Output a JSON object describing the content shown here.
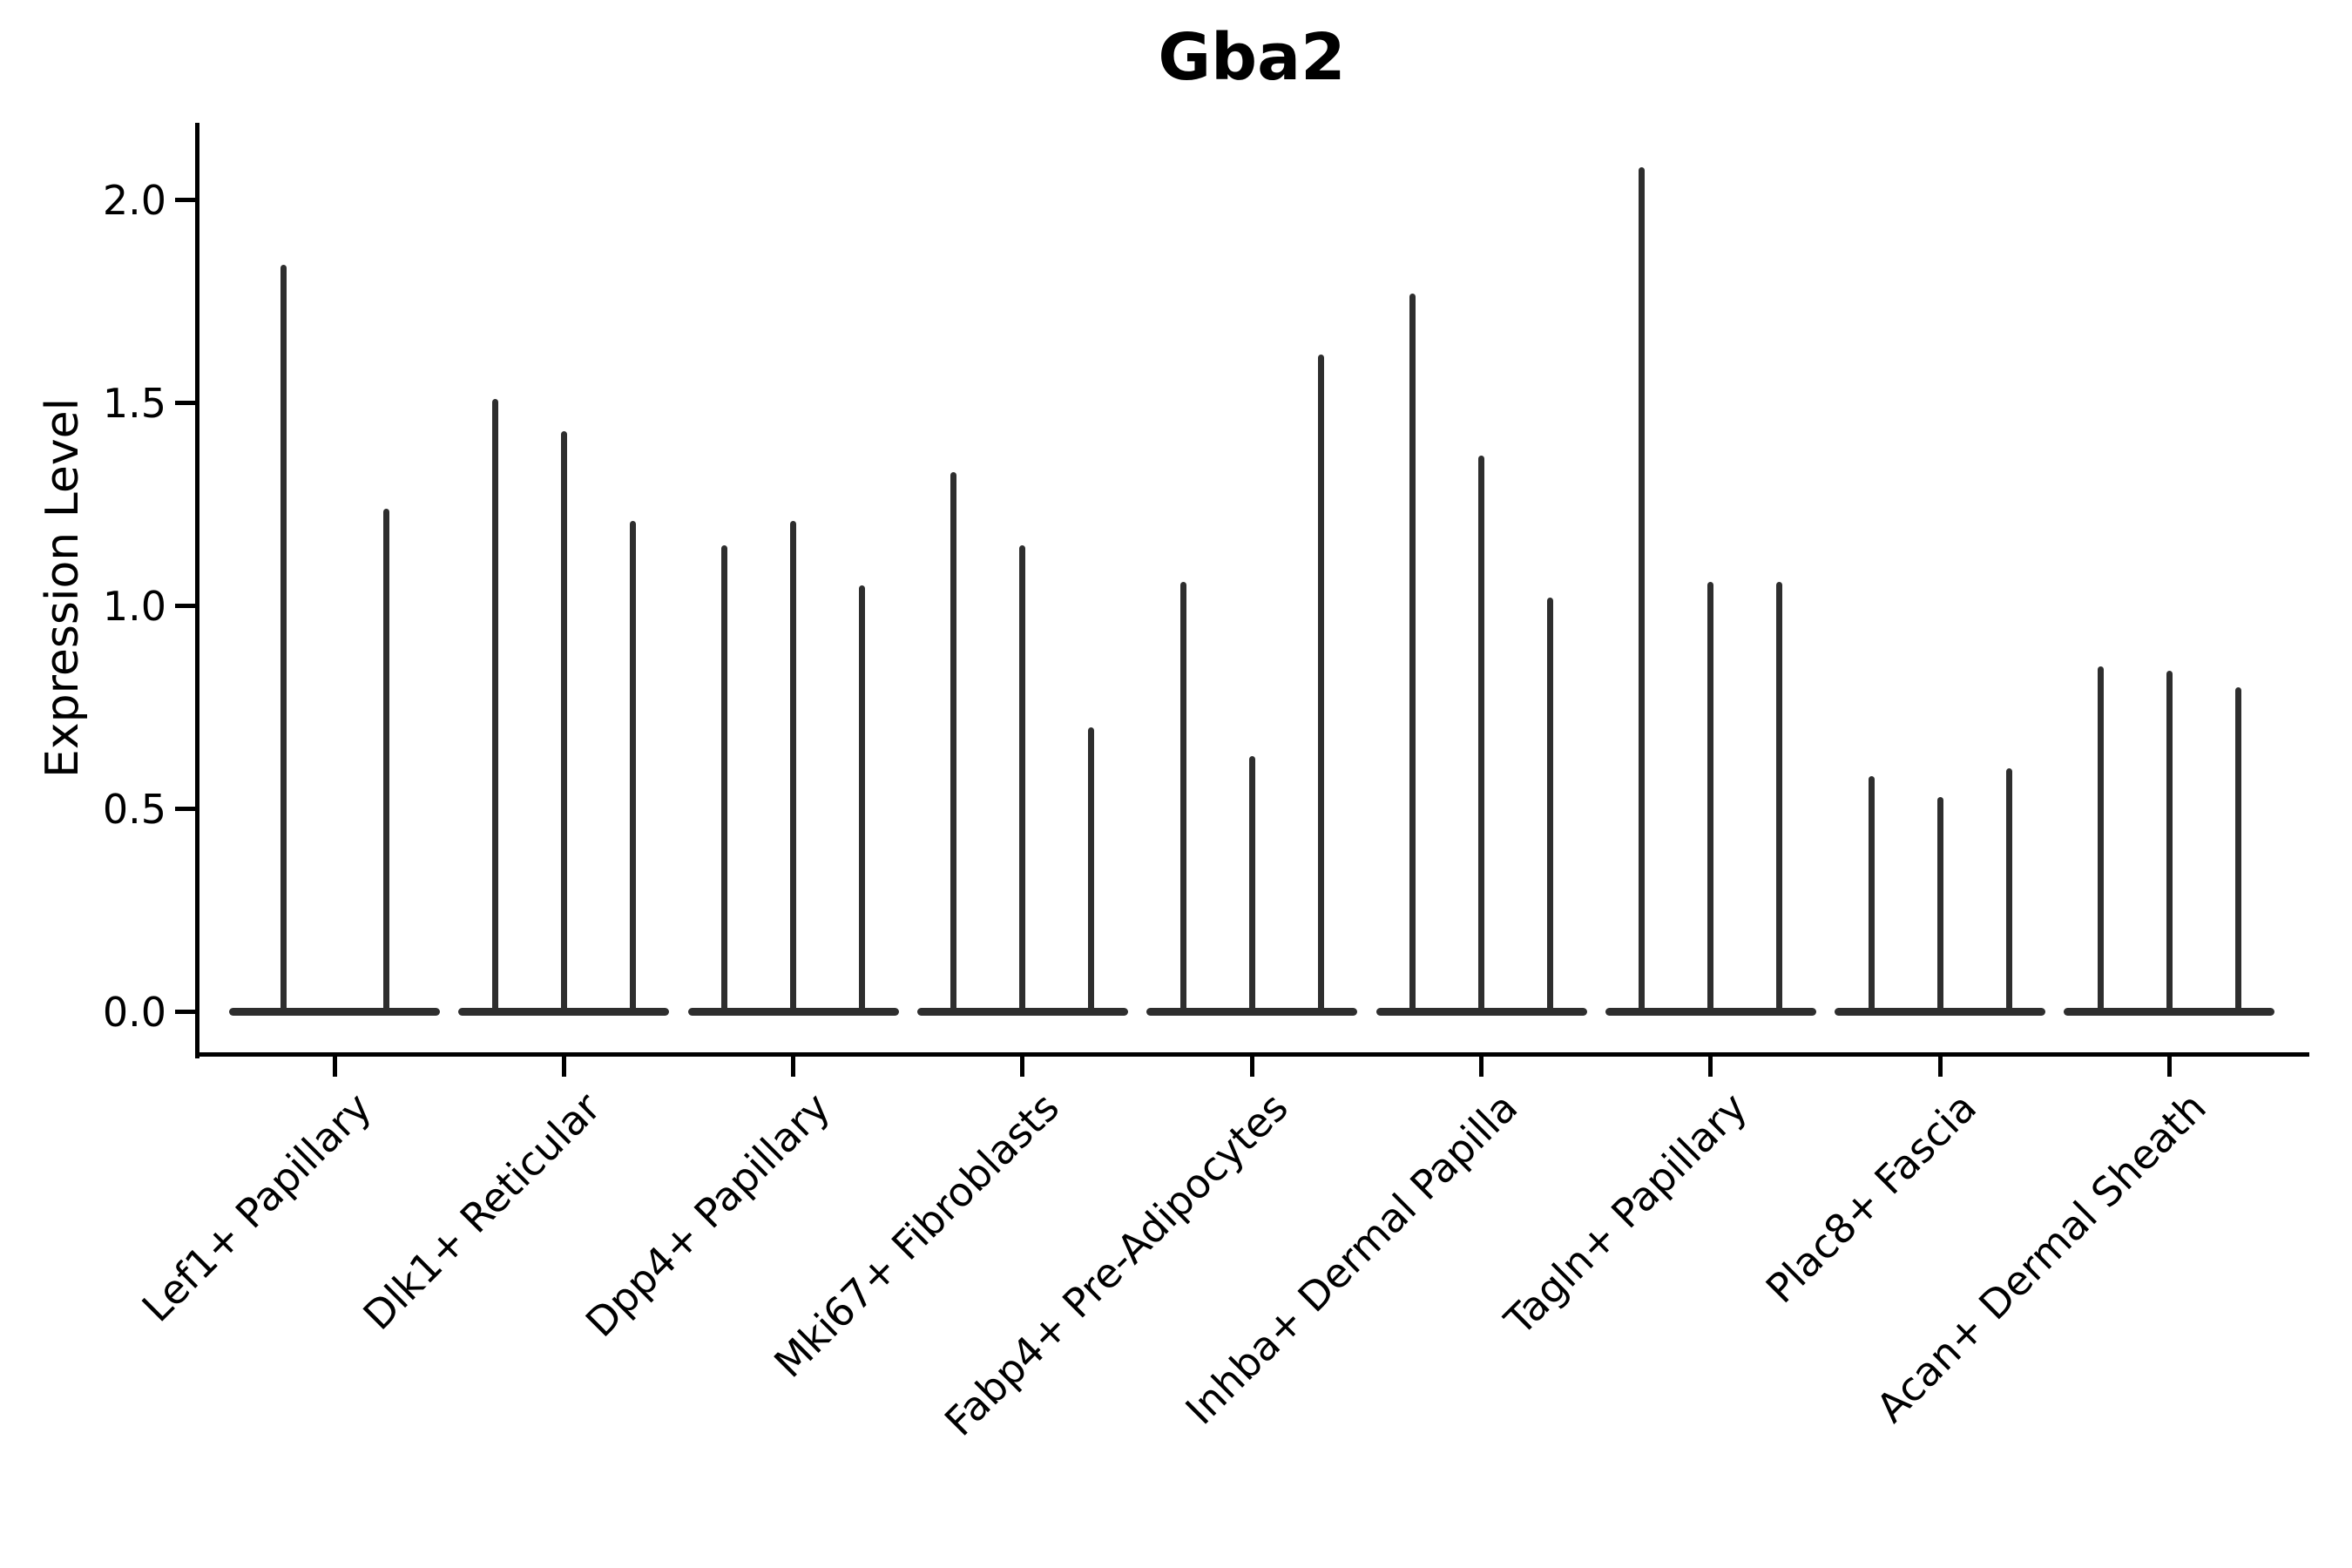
{
  "title": "Gba2",
  "y_axis": {
    "label": "Expression Level"
  },
  "chart_data": {
    "type": "violin",
    "title": "Gba2",
    "xlabel": "",
    "ylabel": "Expression Level",
    "orientation": "vertical",
    "violin_style": "needle-like violins: a thin vertical spike rising from a flat zero-expression base blob to the maximum expression value; 2-3 violins dodged per category",
    "categories": [
      "Lef1+ Papillary",
      "Dlk1+ Reticular",
      "Dpp4+ Papillary",
      "Mki67+ Fibroblasts",
      "Fabp4+ Pre-Adipocytes",
      "Inhba+ Dermal Papilla",
      "Tagln+ Papillary",
      "Plac8+ Fascia",
      "Acan+ Dermal Sheath"
    ],
    "violin_max_values": [
      [
        1.84,
        1.24
      ],
      [
        1.51,
        1.43,
        1.21
      ],
      [
        1.15,
        1.21,
        1.05
      ],
      [
        1.33,
        1.15,
        0.7
      ],
      [
        1.06,
        0.63,
        1.62
      ],
      [
        1.77,
        1.37,
        1.02
      ],
      [
        2.08,
        1.06,
        1.06
      ],
      [
        0.58,
        0.53,
        0.6
      ],
      [
        0.85,
        0.84,
        0.8
      ]
    ],
    "violin_min_value": 0.0,
    "yticks": [
      0.0,
      0.5,
      1.0,
      1.5,
      2.0
    ],
    "ytick_labels": [
      "0.0",
      "0.5",
      "1.0",
      "1.5",
      "2.0"
    ],
    "ylim": [
      -0.11,
      2.19
    ],
    "grid": false,
    "legend": "none",
    "colors": {
      "needle": "#2e2e2e",
      "base_blob": "#2e2e2e",
      "axis": "#000000",
      "text": "#000000",
      "background": "#ffffff"
    }
  }
}
